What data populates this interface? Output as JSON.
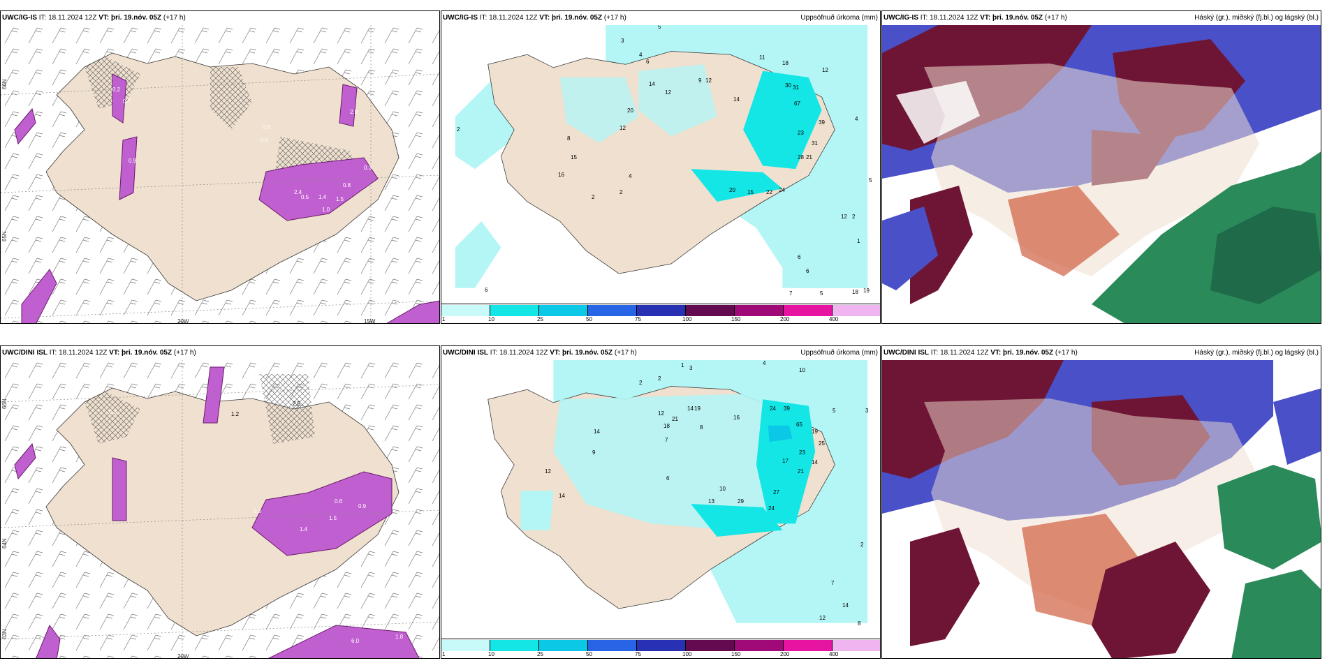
{
  "panels": {
    "p1": {
      "model": "UWC/IG-IS",
      "it_label": "IT:",
      "it": "18.11.2024 12Z",
      "vt_label": "VT:",
      "vt": "þri. 19.nóv. 05Z",
      "lead": "(+17 h)",
      "right": ""
    },
    "p2": {
      "model": "UWC/IG-IS",
      "it_label": "IT:",
      "it": "18.11.2024 12Z",
      "vt_label": "VT:",
      "vt": "þri. 19.nóv. 05Z",
      "lead": "(+17 h)",
      "right": "Uppsöfnuð úrkoma (mm)"
    },
    "p3": {
      "model": "UWC/IG-IS",
      "it_label": "IT:",
      "it": "18.11.2024 12Z",
      "vt_label": "VT:",
      "vt": "þri. 19.nóv. 05Z",
      "lead": "(+17 h)",
      "right": "Háský (gr.), miðský (fj.bl.) og lágský (bl.)"
    },
    "p4": {
      "model": "UWC/DINI ISL",
      "it_label": "IT:",
      "it": "18.11.2024 12Z",
      "vt_label": "VT:",
      "vt": "þri. 19.nóv. 05Z",
      "lead": "(+17 h)",
      "right": ""
    },
    "p5": {
      "model": "UWC/DINI ISL",
      "it_label": "IT:",
      "it": "18.11.2024 12Z",
      "vt_label": "VT:",
      "vt": "þri. 19.nóv. 05Z",
      "lead": "(+17 h)",
      "right": "Uppsöfnuð úrkoma (mm)"
    },
    "p6": {
      "model": "UWC/DINI ISL",
      "it_label": "IT:",
      "it": "18.11.2024 12Z",
      "vt_label": "VT:",
      "vt": "þri. 19.nóv. 05Z",
      "lead": "(+17 h)",
      "right": "Háský (gr.), miðský (fj.bl.) og lágský (bl.)"
    }
  },
  "grid": {
    "lat66": "66N",
    "lat64": "64N",
    "lat65": "65N",
    "lat63": "63N",
    "lon20": "20W",
    "lon15": "15W"
  },
  "colorbar": {
    "ticks": [
      "1",
      "10",
      "25",
      "50",
      "75",
      "100",
      "150",
      "200",
      "400"
    ],
    "colors": [
      "#c8fafa",
      "#14e6e6",
      "#0ac8e6",
      "#2864e6",
      "#2830b4",
      "#640a50",
      "#a00a78",
      "#e614a0",
      "#f0b4f0"
    ]
  },
  "colors": {
    "land": "#efe0cf",
    "precip_light": "#b4f5f5",
    "precip_mid": "#14e6e6",
    "snow": "#c060d0",
    "high_cloud": "#6e1535",
    "mid_cloud": "#4a50c8",
    "low_cloud": "#2a8a5a"
  },
  "precip_values_top": [
    "3",
    "5",
    "6",
    "4",
    "12",
    "11",
    "18",
    "14",
    "12",
    "20",
    "12",
    "9",
    "12",
    "30",
    "31",
    "67",
    "14",
    "16",
    "15",
    "8",
    "4",
    "2",
    "2",
    "20",
    "15",
    "22",
    "24",
    "28",
    "21",
    "31",
    "23",
    "39",
    "12",
    "2",
    "6",
    "6",
    "7",
    "5",
    "18",
    "19",
    "2",
    "6",
    "1",
    "5",
    "4"
  ],
  "precip_values_bottom": [
    "2",
    "2",
    "3",
    "1",
    "4",
    "10",
    "24",
    "39",
    "65",
    "14",
    "12",
    "21",
    "18",
    "14",
    "19",
    "16",
    "9",
    "7",
    "8",
    "12",
    "14",
    "6",
    "10",
    "13",
    "29",
    "24",
    "27",
    "21",
    "17",
    "23",
    "25",
    "14",
    "19",
    "5",
    "3",
    "2",
    "7",
    "14",
    "12",
    "8"
  ],
  "snow_values_top": [
    "0.2",
    "0.7",
    "0.9",
    "0.5",
    "2.0",
    "0.6",
    "0.5",
    "1.0",
    "1.5",
    "1.4",
    "2.4",
    "0.8",
    "0.3"
  ],
  "snow_values_bottom": [
    "0.3",
    "1.2",
    "2.5",
    "0.3",
    "0.9",
    "1.4",
    "0.6",
    "1.5",
    "6.0",
    "1.8"
  ]
}
